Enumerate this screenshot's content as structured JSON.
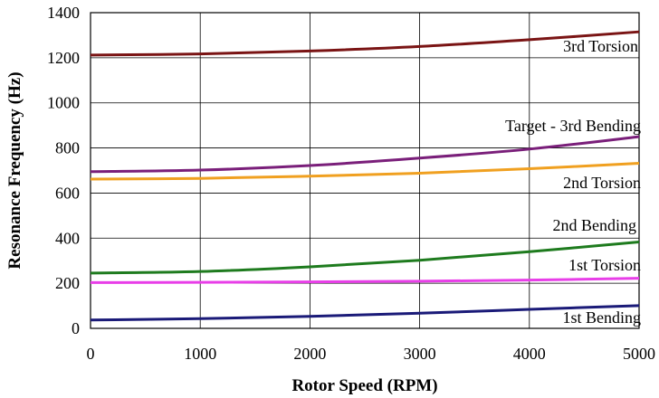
{
  "chart_data": {
    "type": "line",
    "xlabel": "Rotor Speed (RPM)",
    "ylabel": "Resonance Frequency (Hz)",
    "xlim": [
      0,
      5000
    ],
    "ylim": [
      0,
      1400
    ],
    "xticks": [
      0,
      1000,
      2000,
      3000,
      4000,
      5000
    ],
    "yticks": [
      0,
      200,
      400,
      600,
      800,
      1000,
      1200,
      1400
    ],
    "grid": true,
    "legend": "none",
    "x": [
      0,
      1000,
      2000,
      3000,
      4000,
      5000
    ],
    "series": [
      {
        "name": "3rd Torsion",
        "color": "#7a1414",
        "values": [
          1212,
          1217,
          1230,
          1250,
          1280,
          1315
        ]
      },
      {
        "name": "Target - 3rd Bending",
        "color": "#7a1f7a",
        "values": [
          695,
          702,
          722,
          755,
          795,
          850
        ]
      },
      {
        "name": "2nd Torsion",
        "color": "#f0a020",
        "values": [
          662,
          665,
          675,
          688,
          708,
          732
        ]
      },
      {
        "name": "2nd Bending",
        "color": "#1e7b1e",
        "values": [
          245,
          252,
          273,
          302,
          340,
          383
        ]
      },
      {
        "name": "1st Torsion",
        "color": "#e83ee8",
        "values": [
          203,
          204,
          206,
          209,
          214,
          222
        ]
      },
      {
        "name": "1st Bending",
        "color": "#1a1a78",
        "values": [
          37,
          43,
          53,
          67,
          84,
          101
        ]
      }
    ]
  }
}
